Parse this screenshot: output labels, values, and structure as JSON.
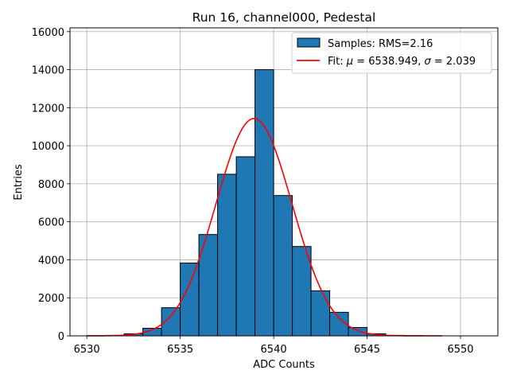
{
  "chart_data": {
    "type": "bar",
    "title": "Run 16, channel000, Pedestal",
    "xlabel": "ADC Counts",
    "ylabel": "Entries",
    "xlim": [
      6529.1,
      6552.0
    ],
    "ylim": [
      0,
      16200
    ],
    "xticks": [
      6530,
      6535,
      6540,
      6545,
      6550
    ],
    "yticks": [
      0,
      2000,
      4000,
      6000,
      8000,
      10000,
      12000,
      14000,
      16000
    ],
    "grid": true,
    "legend_position": "top-right",
    "histogram": {
      "name": "Samples: RMS=2.16",
      "color": "#1f77b4",
      "edgecolor": "#000000",
      "bin_edges": [
        6530,
        6531,
        6532,
        6533,
        6534,
        6535,
        6536,
        6537,
        6538,
        6539,
        6540,
        6541,
        6542,
        6543,
        6544,
        6545,
        6546,
        6547,
        6548,
        6549
      ],
      "counts": [
        10,
        25,
        110,
        400,
        1480,
        3830,
        5330,
        8500,
        9420,
        14000,
        7380,
        4700,
        2370,
        1240,
        440,
        110,
        25,
        10,
        5
      ]
    },
    "fit": {
      "name": "Fit: μ = 6538.949, σ = 2.039",
      "label_prefix": "Fit: ",
      "mu_symbol": "μ",
      "mu_text": " = 6538.949, ",
      "sigma_symbol": "σ",
      "sigma_text": " = 2.039",
      "color": "#ff0000",
      "mu": 6538.949,
      "sigma": 2.039,
      "amplitude": 11430,
      "x_range": [
        6530,
        6549
      ]
    }
  }
}
